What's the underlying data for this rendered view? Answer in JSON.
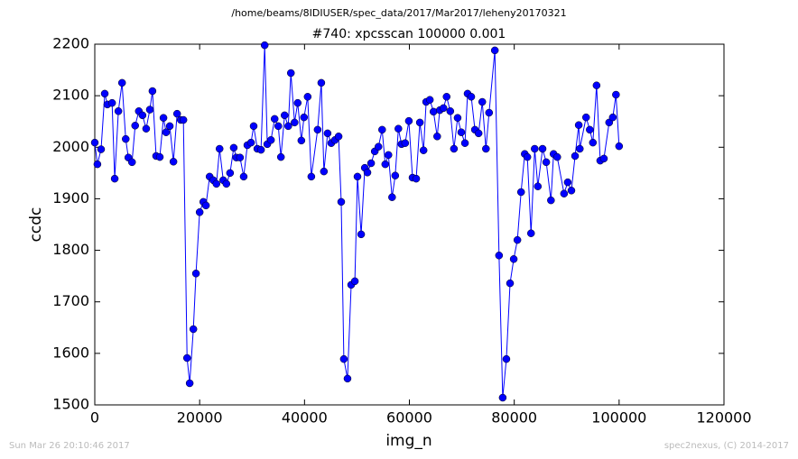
{
  "chart_data": {
    "type": "line",
    "title": "/home/beams/8IDIUSER/spec_data/2017/Mar2017/leheny20170321",
    "subtitle": "#740: xpcsscan 100000 0.001",
    "x_label": "img_n",
    "y_label": "ccdc",
    "footer_left": "Sun Mar 26 20:10:46 2017",
    "footer_right": "spec2nexus, (C) 2014-2017",
    "xlim": [
      0,
      120000
    ],
    "ylim": [
      1500,
      2200
    ],
    "xticks": [
      0,
      20000,
      40000,
      60000,
      80000,
      100000,
      120000
    ],
    "yticks": [
      1500,
      1600,
      1700,
      1800,
      1900,
      2000,
      2100,
      2200
    ],
    "grid": false,
    "x": [
      0,
      500,
      1200,
      1900,
      2400,
      3300,
      3800,
      4500,
      5200,
      5900,
      6400,
      7100,
      7700,
      8400,
      9100,
      9800,
      10500,
      11000,
      11700,
      12400,
      13100,
      13600,
      14300,
      15000,
      15700,
      16400,
      16900,
      17600,
      18100,
      18800,
      19300,
      20000,
      20700,
      21200,
      21900,
      22600,
      23200,
      23800,
      24500,
      25100,
      25800,
      26500,
      27000,
      27700,
      28400,
      29100,
      29800,
      30300,
      31000,
      31700,
      32400,
      32900,
      33600,
      34300,
      35000,
      35500,
      36200,
      36900,
      37400,
      38100,
      38700,
      39400,
      39900,
      40600,
      41300,
      42500,
      43200,
      43700,
      44400,
      45100,
      45800,
      46500,
      47000,
      47500,
      48200,
      48900,
      49600,
      50100,
      50800,
      51500,
      52000,
      52700,
      53400,
      54100,
      54800,
      55400,
      56000,
      56700,
      57300,
      57900,
      58500,
      59200,
      59900,
      60600,
      61300,
      62000,
      62700,
      63200,
      63900,
      64600,
      65300,
      65800,
      66500,
      67100,
      67800,
      68500,
      69200,
      69900,
      70600,
      71100,
      71800,
      72500,
      73200,
      73900,
      74600,
      75200,
      76300,
      77100,
      77800,
      78500,
      79200,
      79900,
      80600,
      81300,
      82000,
      82500,
      83200,
      83900,
      84500,
      85400,
      86100,
      87000,
      87500,
      88200,
      89500,
      90200,
      90900,
      91600,
      92300,
      92500,
      93700,
      94400,
      95000,
      95700,
      96400,
      97100,
      98100,
      98800,
      99400,
      100000
    ],
    "series": [
      {
        "name": "ccdc",
        "color": "#0000ff",
        "values": [
          2009,
          1967,
          1996,
          2104,
          2083,
          2086,
          1939,
          2070,
          2125,
          2016,
          1980,
          1971,
          2042,
          2070,
          2062,
          2036,
          2073,
          2109,
          1983,
          1981,
          2057,
          2029,
          2041,
          1972,
          2065,
          2053,
          2053,
          1591,
          1542,
          1647,
          1755,
          1874,
          1894,
          1887,
          1943,
          1936,
          1929,
          1997,
          1936,
          1929,
          1950,
          1999,
          1980,
          1980,
          1943,
          2004,
          2009,
          2041,
          1997,
          1995,
          2198,
          2006,
          2014,
          2055,
          2041,
          1981,
          2062,
          2041,
          2144,
          2048,
          2086,
          2013,
          2058,
          2098,
          1943,
          2034,
          2125,
          1953,
          2027,
          2008,
          2014,
          2021,
          1894,
          1589,
          1551,
          1733,
          1740,
          1943,
          1831,
          1960,
          1951,
          1969,
          1992,
          2001,
          2034,
          1967,
          1985,
          1903,
          1945,
          2036,
          2006,
          2008,
          2051,
          1941,
          1939,
          2048,
          1994,
          2088,
          2092,
          2069,
          2021,
          2072,
          2076,
          2098,
          2070,
          1997,
          2057,
          2029,
          2008,
          2104,
          2098,
          2034,
          2027,
          2088,
          1997,
          2067,
          2188,
          1790,
          1514,
          1589,
          1736,
          1783,
          1820,
          1913,
          1987,
          1981,
          1833,
          1997,
          1924,
          1997,
          1971,
          1897,
          1987,
          1981,
          1910,
          1932,
          1916,
          1983,
          2043,
          1997,
          2058,
          2034,
          2009,
          2120,
          1974,
          1978,
          2048,
          2058,
          2102,
          2002
        ]
      }
    ]
  }
}
